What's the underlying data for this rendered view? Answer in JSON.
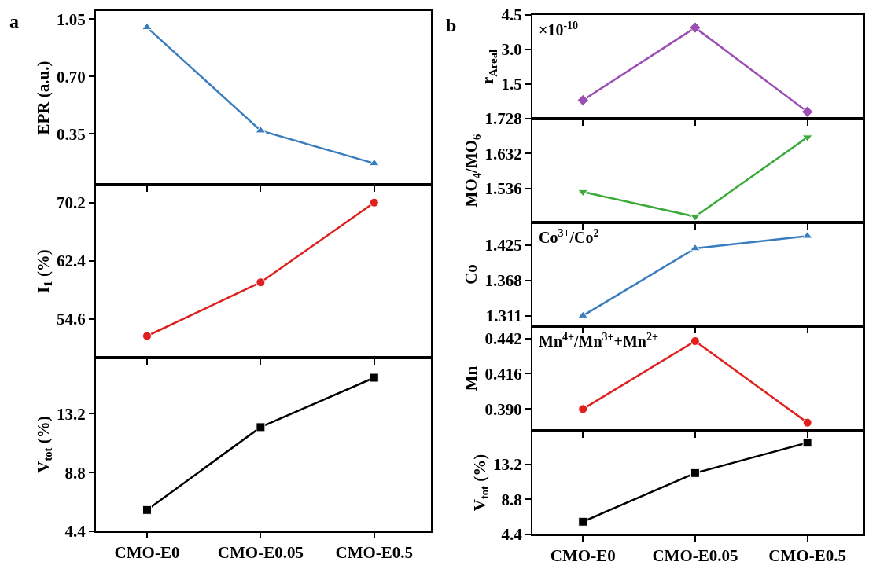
{
  "chart_data": [
    {
      "type": "line",
      "title": "a",
      "ylabel": "EPR (a.u.)",
      "categories": [
        null,
        null,
        null
      ],
      "marker": "triangle",
      "ylim": [
        0.04,
        1.1
      ],
      "yticks": [
        0.35,
        {
          "value": 0.7,
          "label": "0.70"
        },
        1.05
      ],
      "series": [
        {
          "color": "#3a7dbf",
          "values": [
            1.0,
            0.37,
            0.17
          ]
        }
      ]
    },
    {
      "type": "line",
      "ylabel": "I$_{1}$ (%)",
      "categories": [
        null,
        null,
        null
      ],
      "marker": "circle",
      "ylim": [
        49.4,
        72.6
      ],
      "yticks": [
        54.6,
        62.4,
        70.2
      ],
      "series": [
        {
          "color": "#e0201f",
          "values": [
            52.3,
            59.5,
            70.2
          ]
        }
      ]
    },
    {
      "type": "line",
      "ylabel": "V$_{tot}$ (%)",
      "categories": [
        "CMO-E0",
        "CMO-E0.05",
        "CMO-E0.5"
      ],
      "marker": "square",
      "ylim": [
        4.4,
        17.4
      ],
      "yticks": [
        4.4,
        8.8,
        13.2
      ],
      "series": [
        {
          "color": "#000000",
          "values": [
            6.0,
            12.2,
            15.9
          ]
        }
      ]
    },
    {
      "type": "line",
      "title": "b",
      "ylabel": "r$_{Areal}$",
      "annotations": [
        "×10$^{-10}$"
      ],
      "categories": [
        null,
        null,
        null
      ],
      "marker": "diamond",
      "ylim": [
        0.0,
        4.5
      ],
      "yticks": [
        1.5,
        {
          "value": 3.0,
          "label": "3.0"
        },
        4.5
      ],
      "series": [
        {
          "color": "#9b4fb5",
          "values": [
            0.8,
            3.95,
            0.3
          ]
        }
      ]
    },
    {
      "type": "line",
      "ylabel": "MO$_{4}$/MO$_{6}$",
      "categories": [
        null,
        null,
        null
      ],
      "marker": "triangle-down",
      "ylim": [
        1.443,
        1.728
      ],
      "yticks": [
        1.536,
        1.632,
        1.728
      ],
      "series": [
        {
          "color": "#3aaa3a",
          "values": [
            1.527,
            1.459,
            1.677
          ]
        }
      ]
    },
    {
      "type": "line",
      "ylabel": "Co",
      "annotations": [
        "Co$^{3+}$/Co$^{2+}$"
      ],
      "categories": [
        null,
        null,
        null
      ],
      "marker": "triangle",
      "ylim": [
        1.294,
        1.462
      ],
      "yticks": [
        1.311,
        1.368,
        1.425
      ],
      "series": [
        {
          "color": "#3a7dbf",
          "values": [
            1.311,
            1.42,
            1.44
          ]
        }
      ]
    },
    {
      "type": "line",
      "ylabel": "Mn",
      "annotations": [
        "Mn$^{4+}$/Mn$^{3+}$+Mn$^{2+}$"
      ],
      "categories": [
        null,
        null,
        null
      ],
      "marker": "circle",
      "ylim": [
        0.374,
        0.451
      ],
      "yticks": [
        {
          "value": 0.39,
          "label": "0.390"
        },
        0.416,
        0.442
      ],
      "series": [
        {
          "color": "#e0201f",
          "values": [
            0.39,
            0.44,
            0.38
          ]
        }
      ]
    },
    {
      "type": "line",
      "ylabel": "V$_{tot}$ (%)",
      "categories": [
        "CMO-E0",
        "CMO-E0.05",
        "CMO-E0.5"
      ],
      "marker": "square",
      "ylim": [
        4.4,
        17.4
      ],
      "yticks": [
        4.4,
        8.8,
        13.2
      ],
      "series": [
        {
          "color": "#000000",
          "values": [
            6.0,
            12.1,
            15.9
          ]
        }
      ]
    }
  ]
}
